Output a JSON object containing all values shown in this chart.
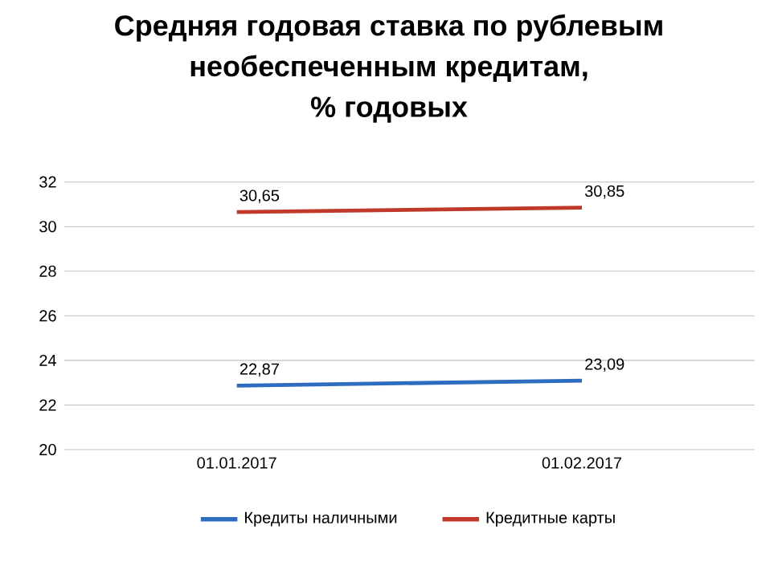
{
  "chart_data": {
    "type": "line",
    "title": "Средняя годовая ставка по рублевым необеспеченным кредитам,\n% годовых",
    "categories": [
      "01.01.2017",
      "01.02.2017"
    ],
    "series": [
      {
        "name": "Кредиты наличными",
        "color": "#2e6cc0",
        "values": [
          22.87,
          23.09
        ],
        "value_labels": [
          "22,87",
          "23,09"
        ]
      },
      {
        "name": "Кредитные карты",
        "color": "#c0392b",
        "values": [
          30.65,
          30.85
        ],
        "value_labels": [
          "30,65",
          "30,85"
        ]
      }
    ],
    "ylim": [
      20,
      32
    ],
    "yticks": [
      20,
      22,
      24,
      26,
      28,
      30,
      32
    ],
    "grid": "y",
    "legend": "bottom",
    "marker": "none",
    "line_style": "solid"
  }
}
